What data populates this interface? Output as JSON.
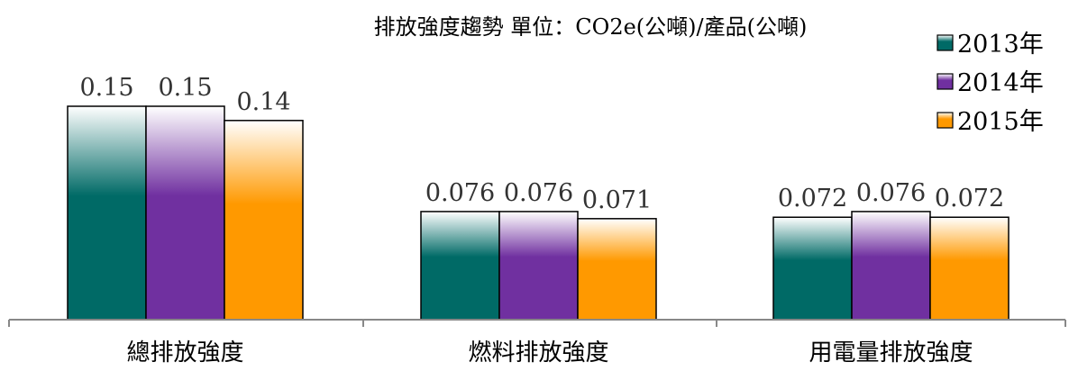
{
  "chart_data": {
    "type": "bar",
    "title": "排放強度趨勢 單位：CO2e(公噸)/產品(公噸)",
    "categories": [
      "總排放強度",
      "燃料排放強度",
      "用電量排放強度"
    ],
    "series": [
      {
        "name": "2013年",
        "values": [
          0.15,
          0.076,
          0.072
        ],
        "color": "#006A66"
      },
      {
        "name": "2014年",
        "values": [
          0.15,
          0.076,
          0.076
        ],
        "color": "#7030A0"
      },
      {
        "name": "2015年",
        "values": [
          0.14,
          0.071,
          0.072
        ],
        "color": "#FF9900"
      }
    ],
    "data_labels": [
      [
        "0.15",
        "0.076",
        "0.072"
      ],
      [
        "0.15",
        "0.076",
        "0.076"
      ],
      [
        "0.14",
        "0.071",
        "0.072"
      ]
    ],
    "ylim": [
      0,
      0.16
    ],
    "xlabel": "",
    "ylabel": "",
    "grid": false,
    "legend_position": "top-right"
  }
}
